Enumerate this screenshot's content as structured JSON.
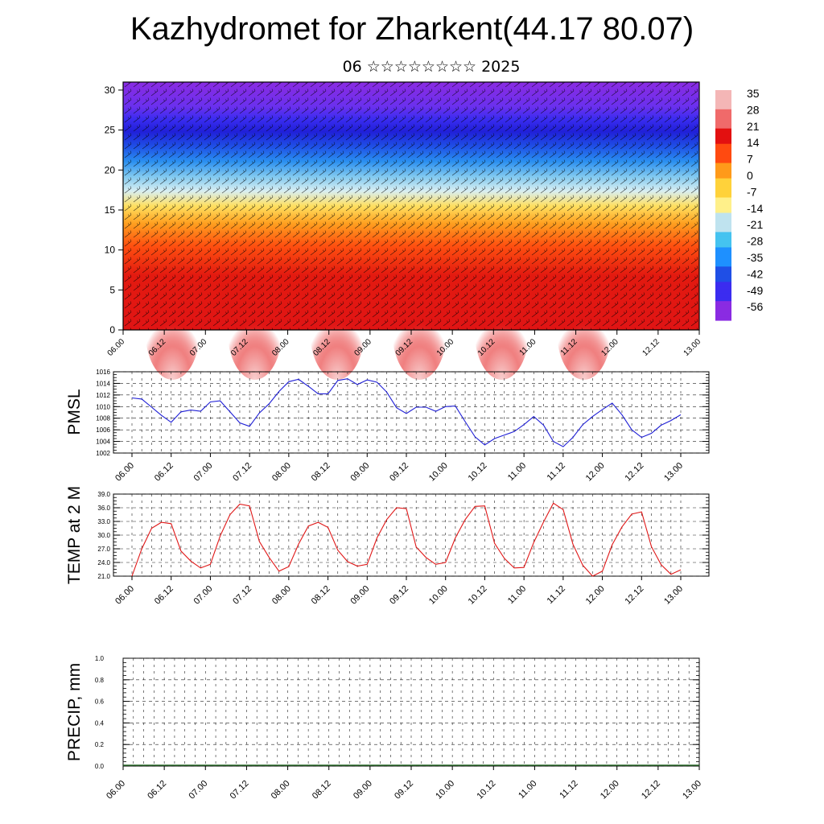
{
  "page": {
    "title": "Kazhydromet for Zharkent(44.17 80.07)",
    "subtitle": "06 ☆☆☆☆☆☆☆☆ 2025"
  },
  "colors": {
    "pmsl_line": "#1f1fd6",
    "temp_line": "#e01818",
    "grid": "#222222",
    "colorbar": [
      "#8a2be2",
      "#3b2cf0",
      "#1f4fe6",
      "#1e90ff",
      "#45c3f0",
      "#bfe3ef",
      "#fff08a",
      "#ffd23a",
      "#ff9a1a",
      "#ff4a10",
      "#e31010",
      "#f06a6a",
      "#f4b6b6"
    ]
  },
  "time_labels": [
    "06.00",
    "06.12",
    "07.00",
    "07.12",
    "08.00",
    "08.12",
    "09.00",
    "09.12",
    "10.00",
    "10.12",
    "11.00",
    "11.12",
    "12.00",
    "12.12",
    "13.00"
  ],
  "chart_data": [
    {
      "type": "heatmap",
      "name": "cross-section",
      "y_ticks": [
        0,
        5,
        10,
        15,
        20,
        25,
        30
      ],
      "ylim": [
        0,
        31
      ],
      "x_ticks": [
        "06.00",
        "06.12",
        "07.00",
        "07.12",
        "08.00",
        "08.12",
        "09.00",
        "09.12",
        "10.00",
        "10.12",
        "11.00",
        "11.12",
        "12.00",
        "12.12",
        "13.00"
      ],
      "colorbar_labels": [
        "35",
        "28",
        "21",
        "14",
        "7",
        "0",
        "-7",
        "-14",
        "-21",
        "-28",
        "-35",
        "-42",
        "-49",
        "-56"
      ],
      "overlay": "wind barbs"
    },
    {
      "type": "line",
      "ylabel": "PMSL",
      "ylim": [
        1002,
        1016
      ],
      "y_ticks": [
        "1016",
        "1014",
        "1012",
        "1010",
        "1008",
        "1006",
        "1004",
        "1002"
      ],
      "x_ticks": [
        "06.00",
        "06.12",
        "07.00",
        "07.12",
        "08.00",
        "08.12",
        "09.00",
        "09.12",
        "10.00",
        "10.12",
        "11.00",
        "11.12",
        "12.00",
        "12.12",
        "13.00"
      ],
      "x_hours": [
        0,
        3,
        6,
        9,
        12,
        15,
        18,
        21,
        24,
        27,
        30,
        33,
        36,
        39,
        42,
        45,
        48,
        51,
        54,
        57,
        60,
        63,
        66,
        69,
        72,
        75,
        78,
        81,
        84,
        87,
        90,
        93,
        96,
        99,
        102,
        105,
        108,
        111,
        114,
        117,
        120,
        123,
        126,
        129,
        132,
        135,
        138,
        141,
        144,
        147,
        150,
        153,
        156,
        159,
        162,
        165,
        168
      ],
      "values": [
        1011.5,
        1011.3,
        1009.9,
        1008.5,
        1007.3,
        1009.1,
        1009.4,
        1009.2,
        1010.8,
        1011.0,
        1009.1,
        1007.2,
        1006.6,
        1008.9,
        1010.5,
        1012.6,
        1014.3,
        1014.7,
        1013.5,
        1012.2,
        1012.2,
        1014.5,
        1014.8,
        1013.8,
        1014.6,
        1014.2,
        1012.5,
        1009.8,
        1008.8,
        1009.9,
        1009.9,
        1009.2,
        1010.0,
        1010.1,
        1007.4,
        1004.8,
        1003.4,
        1004.5,
        1005.1,
        1005.7,
        1006.9,
        1008.3,
        1006.8,
        1004.0,
        1003.1,
        1004.7,
        1006.9,
        1008.3,
        1009.5,
        1010.6,
        1008.6,
        1006.0,
        1004.7,
        1005.4,
        1006.8,
        1007.6,
        1008.6
      ]
    },
    {
      "type": "line",
      "ylabel": "TEMP at 2 M",
      "ylim": [
        21.0,
        39.0
      ],
      "y_ticks": [
        "39.0",
        "36.0",
        "33.0",
        "30.0",
        "27.0",
        "24.0",
        "21.0"
      ],
      "x_ticks": [
        "06.00",
        "06.12",
        "07.00",
        "07.12",
        "08.00",
        "08.12",
        "09.00",
        "09.12",
        "10.00",
        "10.12",
        "11.00",
        "11.12",
        "12.00",
        "12.12",
        "13.00"
      ],
      "x_hours": [
        0,
        3,
        6,
        9,
        12,
        15,
        18,
        21,
        24,
        27,
        30,
        33,
        36,
        39,
        42,
        45,
        48,
        51,
        54,
        57,
        60,
        63,
        66,
        69,
        72,
        75,
        78,
        81,
        84,
        87,
        90,
        93,
        96,
        99,
        102,
        105,
        108,
        111,
        114,
        117,
        120,
        123,
        126,
        129,
        132,
        135,
        138,
        141,
        144,
        147,
        150,
        153,
        156,
        159,
        162,
        165,
        168
      ],
      "values": [
        21.0,
        27.0,
        31.5,
        32.8,
        32.5,
        26.5,
        24.3,
        22.8,
        23.6,
        29.8,
        34.5,
        36.8,
        36.4,
        28.6,
        25.1,
        22.1,
        23.1,
        28.0,
        32.0,
        32.8,
        31.7,
        26.7,
        24.2,
        23.2,
        23.6,
        29.4,
        33.4,
        36.0,
        35.8,
        27.4,
        25.1,
        23.6,
        24.0,
        29.4,
        33.4,
        36.3,
        36.4,
        28.2,
        24.9,
        22.8,
        22.9,
        28.4,
        32.9,
        37.0,
        35.6,
        28.0,
        23.4,
        21.0,
        22.1,
        27.9,
        31.8,
        34.6,
        35.1,
        27.5,
        23.5,
        21.4,
        22.4
      ]
    },
    {
      "type": "bar",
      "ylabel": "PRECIP, mm",
      "ylim": [
        0.0,
        1.0
      ],
      "y_ticks": [
        "1.0",
        "0.8",
        "0.6",
        "0.4",
        "0.2",
        "0.0"
      ],
      "x_ticks": [
        "06.00",
        "06.12",
        "07.00",
        "07.12",
        "08.00",
        "08.12",
        "09.00",
        "09.12",
        "10.00",
        "10.12",
        "11.00",
        "11.12",
        "12.00",
        "12.12",
        "13.00"
      ],
      "values": []
    }
  ]
}
